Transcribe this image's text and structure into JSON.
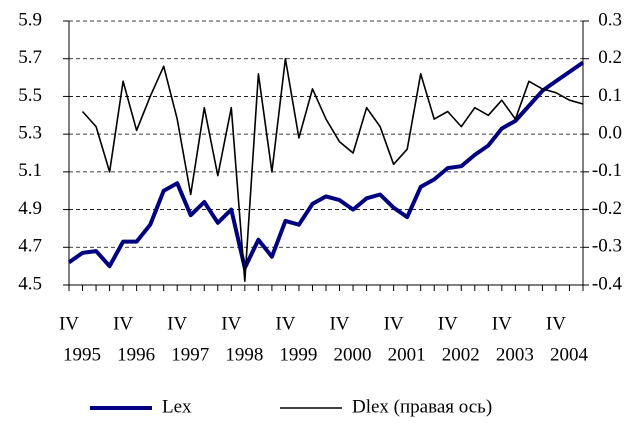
{
  "chart_data": {
    "type": "line",
    "categories": [
      [
        "IV",
        "1995"
      ],
      null,
      null,
      null,
      [
        "IV",
        "1996"
      ],
      null,
      null,
      null,
      [
        "IV",
        "1997"
      ],
      null,
      null,
      null,
      [
        "IV",
        "1998"
      ],
      null,
      null,
      null,
      [
        "IV",
        "1999"
      ],
      null,
      null,
      null,
      [
        "IV",
        "2000"
      ],
      null,
      null,
      null,
      [
        "IV",
        "2001"
      ],
      null,
      null,
      null,
      [
        "IV",
        "2002"
      ],
      null,
      null,
      null,
      [
        "IV",
        "2003"
      ],
      null,
      null,
      null,
      [
        "IV",
        "2004"
      ],
      null,
      null
    ],
    "series": [
      {
        "name": "Lex",
        "color": "#000080",
        "axis": "y",
        "values": [
          4.62,
          4.67,
          4.68,
          4.6,
          4.73,
          4.73,
          4.82,
          5.0,
          5.04,
          4.87,
          4.94,
          4.83,
          4.9,
          4.59,
          4.74,
          4.65,
          4.84,
          4.82,
          4.93,
          4.97,
          4.95,
          4.9,
          4.96,
          4.98,
          4.91,
          4.86,
          5.02,
          5.06,
          5.12,
          5.13,
          5.19,
          5.24,
          5.33,
          5.37,
          5.45,
          5.53,
          5.58,
          5.63,
          5.68
        ]
      },
      {
        "name": "Dlex (правая ось)",
        "color": "#000000",
        "axis": "y2",
        "values": [
          null,
          0.06,
          0.02,
          -0.1,
          0.14,
          0.01,
          0.1,
          0.18,
          0.04,
          -0.16,
          0.07,
          -0.11,
          0.07,
          -0.39,
          0.16,
          -0.1,
          0.2,
          -0.01,
          0.12,
          0.04,
          -0.02,
          -0.05,
          0.07,
          0.02,
          -0.08,
          -0.04,
          0.16,
          0.04,
          0.06,
          0.02,
          0.07,
          0.05,
          0.09,
          0.04,
          0.14,
          0.12,
          0.11,
          0.09,
          0.08
        ]
      }
    ],
    "ylim": [
      4.5,
      5.9
    ],
    "yticks": [
      4.5,
      4.7,
      4.9,
      5.1,
      5.3,
      5.5,
      5.7,
      5.9
    ],
    "y2lim": [
      -0.4,
      0.3
    ],
    "y2ticks": [
      -0.4,
      -0.3,
      -0.2,
      -0.1,
      {
        "value": 0,
        "label": "0.0"
      },
      0.1,
      0.2,
      0.3
    ],
    "grid": true,
    "legend": "bottom"
  }
}
